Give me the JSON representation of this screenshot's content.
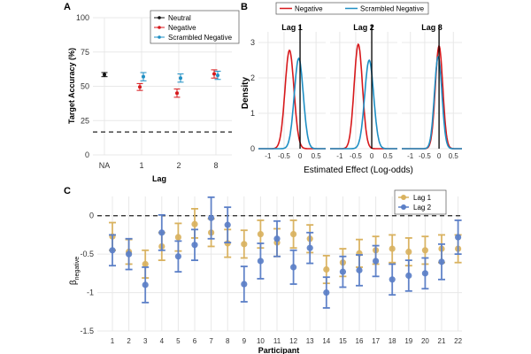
{
  "colors": {
    "neutral": "#111111",
    "negative": "#d7191c",
    "scrambled": "#1f8fc4",
    "lag1": "#d9b25f",
    "lag2": "#5b7fc7",
    "grid": "#e8e8e8",
    "dash": "#222222"
  },
  "chart_data": [
    {
      "panel": "A",
      "type": "scatter",
      "title": "",
      "xlabel": "Lag",
      "ylabel": "Target Accuracy (%)",
      "categories": [
        "NA",
        "1",
        "2",
        "8"
      ],
      "ylim": [
        0,
        100
      ],
      "yticks": [
        0,
        25,
        50,
        75,
        100
      ],
      "chance_line": 16.7,
      "legend_position": "top-right",
      "series": [
        {
          "name": "Neutral",
          "color_key": "neutral",
          "points": [
            {
              "x": "NA",
              "y": 58.5,
              "lo": 57,
              "hi": 60
            }
          ]
        },
        {
          "name": "Negative",
          "color_key": "negative",
          "points": [
            {
              "x": "1",
              "y": 49.5,
              "lo": 47,
              "hi": 52
            },
            {
              "x": "2",
              "y": 45,
              "lo": 42,
              "hi": 48
            },
            {
              "x": "8",
              "y": 59,
              "lo": 56,
              "hi": 62
            }
          ]
        },
        {
          "name": "Scrambled Negative",
          "color_key": "scrambled",
          "points": [
            {
              "x": "1",
              "y": 57,
              "lo": 54,
              "hi": 60
            },
            {
              "x": "2",
              "y": 56,
              "lo": 53,
              "hi": 59
            },
            {
              "x": "8",
              "y": 58,
              "lo": 55,
              "hi": 61
            }
          ]
        }
      ]
    },
    {
      "panel": "B",
      "type": "area",
      "title": "",
      "xlabel": "Estimated Effect (Log-odds)",
      "ylabel": "Density",
      "facets": [
        "Lag 1",
        "Lag 2",
        "Lag 8"
      ],
      "xlim": [
        -1.3,
        0.8
      ],
      "xticks": [
        "-1",
        "-0.5",
        "0",
        "0.5"
      ],
      "xtick_values": [
        -1,
        -0.5,
        0,
        0.5
      ],
      "ylim": [
        0,
        3.3
      ],
      "yticks": [
        0,
        1,
        2,
        3
      ],
      "legend_position": "top",
      "series": [
        {
          "name": "Negative",
          "color_key": "negative",
          "means": [
            -0.33,
            -0.42,
            0.0
          ],
          "sds": [
            0.14,
            0.13,
            0.13
          ],
          "peaks": [
            2.78,
            2.95,
            2.9
          ]
        },
        {
          "name": "Scrambled Negative",
          "color_key": "scrambled",
          "means": [
            -0.04,
            -0.08,
            -0.03
          ],
          "sds": [
            0.14,
            0.14,
            0.13
          ],
          "peaks": [
            2.55,
            2.5,
            2.6
          ]
        }
      ],
      "reference_line": 0
    },
    {
      "panel": "C",
      "type": "scatter",
      "title": "",
      "xlabel": "Participant",
      "ylabel_main": "β",
      "ylabel_sub": "negative",
      "ylim": [
        -1.5,
        0.25
      ],
      "yticks": [
        "-1.5",
        "-1",
        "-0.5",
        "0"
      ],
      "ytick_values": [
        -1.5,
        -1,
        -0.5,
        0
      ],
      "categories": [
        "1",
        "2",
        "3",
        "4",
        "5",
        "6",
        "7",
        "8",
        "9",
        "10",
        "11",
        "12",
        "13",
        "14",
        "15",
        "16",
        "17",
        "18",
        "19",
        "20",
        "21",
        "22"
      ],
      "legend_position": "top-right",
      "series": [
        {
          "name": "Lag 1",
          "color_key": "lag1",
          "values": [
            -0.27,
            -0.47,
            -0.63,
            -0.4,
            -0.28,
            -0.11,
            -0.22,
            -0.36,
            -0.37,
            -0.24,
            -0.35,
            -0.24,
            -0.3,
            -0.7,
            -0.61,
            -0.49,
            -0.45,
            -0.43,
            -0.47,
            -0.45,
            -0.43,
            -0.43
          ],
          "lo": [
            -0.45,
            -0.63,
            -0.81,
            -0.58,
            -0.46,
            -0.29,
            -0.4,
            -0.54,
            -0.55,
            -0.42,
            -0.53,
            -0.42,
            -0.48,
            -0.88,
            -0.79,
            -0.67,
            -0.63,
            -0.61,
            -0.65,
            -0.63,
            -0.61,
            -0.61
          ],
          "hi": [
            -0.09,
            -0.31,
            -0.45,
            -0.22,
            -0.1,
            0.09,
            -0.04,
            -0.18,
            -0.19,
            -0.06,
            -0.17,
            -0.06,
            -0.12,
            -0.52,
            -0.43,
            -0.31,
            -0.27,
            -0.25,
            -0.29,
            -0.27,
            -0.25,
            -0.25
          ]
        },
        {
          "name": "Lag 2",
          "color_key": "lag2",
          "values": [
            -0.45,
            -0.5,
            -0.9,
            -0.22,
            -0.53,
            -0.38,
            -0.03,
            -0.12,
            -0.89,
            -0.59,
            -0.3,
            -0.67,
            -0.42,
            -1.0,
            -0.73,
            -0.71,
            -0.59,
            -0.83,
            -0.78,
            -0.75,
            -0.6,
            -0.28
          ],
          "lo": [
            -0.65,
            -0.7,
            -1.13,
            -0.45,
            -0.73,
            -0.58,
            -0.3,
            -0.35,
            -1.12,
            -0.82,
            -0.53,
            -0.89,
            -0.62,
            -1.2,
            -0.93,
            -0.91,
            -0.79,
            -1.03,
            -0.98,
            -0.95,
            -0.83,
            -0.5
          ],
          "hi": [
            -0.25,
            -0.3,
            -0.67,
            0.01,
            -0.33,
            -0.18,
            0.24,
            0.11,
            -0.66,
            -0.36,
            -0.07,
            -0.45,
            -0.22,
            -0.8,
            -0.53,
            -0.51,
            -0.39,
            -0.63,
            -0.58,
            -0.55,
            -0.37,
            -0.06
          ]
        }
      ],
      "reference_line": 0
    }
  ]
}
